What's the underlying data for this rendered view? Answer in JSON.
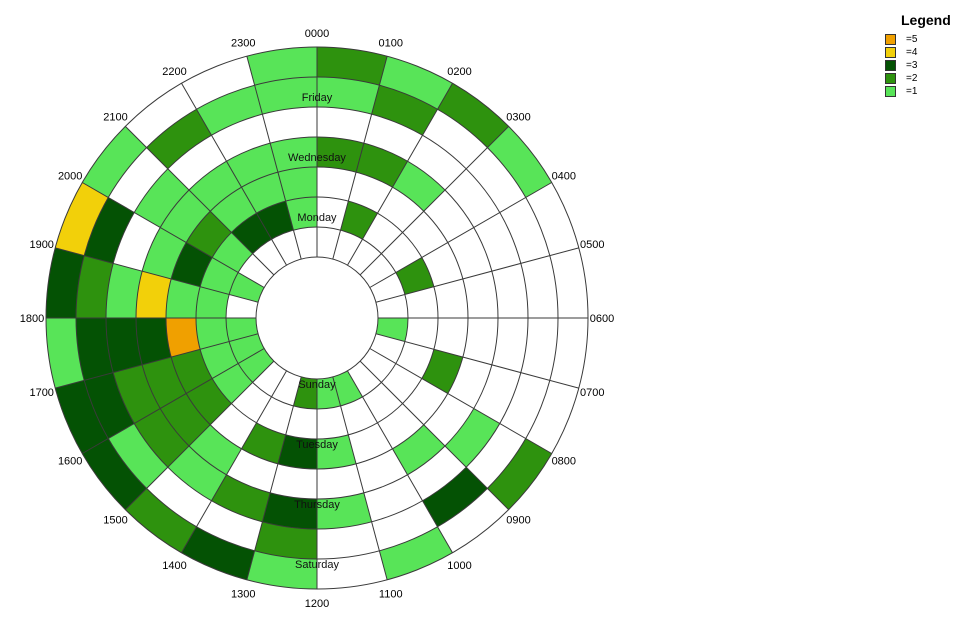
{
  "chart_data": {
    "type": "heatmap",
    "subtype": "radial",
    "hours": [
      "0000",
      "0100",
      "0200",
      "0300",
      "0400",
      "0500",
      "0600",
      "0700",
      "0800",
      "0900",
      "1000",
      "1100",
      "1200",
      "1300",
      "1400",
      "1500",
      "1600",
      "1700",
      "1800",
      "1900",
      "2000",
      "2100",
      "2200",
      "2300"
    ],
    "days": [
      "Sunday",
      "Monday",
      "Tuesday",
      "Wednesday",
      "Thursday",
      "Friday",
      "Saturday"
    ],
    "values": [
      [
        0,
        0,
        0,
        0,
        0,
        0,
        1,
        0,
        0,
        0,
        1,
        1,
        2,
        0,
        0,
        1,
        1,
        1,
        0,
        1,
        0,
        0,
        0,
        0
      ],
      [
        0,
        2,
        0,
        0,
        2,
        0,
        0,
        0,
        0,
        0,
        0,
        0,
        0,
        0,
        0,
        1,
        1,
        1,
        1,
        1,
        1,
        3,
        3,
        1
      ],
      [
        0,
        0,
        0,
        0,
        0,
        0,
        0,
        2,
        0,
        0,
        0,
        1,
        3,
        2,
        0,
        2,
        2,
        5,
        1,
        3,
        2,
        1,
        1,
        1
      ],
      [
        2,
        2,
        1,
        0,
        0,
        0,
        0,
        0,
        0,
        1,
        0,
        0,
        0,
        0,
        1,
        2,
        2,
        3,
        4,
        1,
        1,
        1,
        1,
        1
      ],
      [
        0,
        0,
        0,
        0,
        0,
        0,
        0,
        0,
        1,
        0,
        0,
        1,
        3,
        2,
        1,
        2,
        2,
        3,
        1,
        0,
        1,
        0,
        0,
        0
      ],
      [
        1,
        2,
        0,
        0,
        0,
        0,
        0,
        0,
        0,
        3,
        0,
        0,
        2,
        0,
        0,
        1,
        3,
        3,
        2,
        3,
        0,
        2,
        1,
        1
      ],
      [
        2,
        1,
        2,
        1,
        0,
        0,
        0,
        0,
        2,
        0,
        1,
        0,
        1,
        3,
        2,
        3,
        3,
        1,
        3,
        4,
        1,
        0,
        0,
        1
      ]
    ],
    "legend": [
      {
        "label": "=5",
        "value": 5,
        "color": "#f0a000"
      },
      {
        "label": "=4",
        "value": 4,
        "color": "#f2d00a"
      },
      {
        "label": "=3",
        "value": 3,
        "color": "#045204"
      },
      {
        "label": "=2",
        "value": 2,
        "color": "#2e920e"
      },
      {
        "label": "=1",
        "value": 1,
        "color": "#58e458"
      }
    ],
    "empty_color": "#ffffff",
    "grid_color": "#3a3a3a",
    "legend_title": "Legend",
    "legend_position": "top-right"
  }
}
